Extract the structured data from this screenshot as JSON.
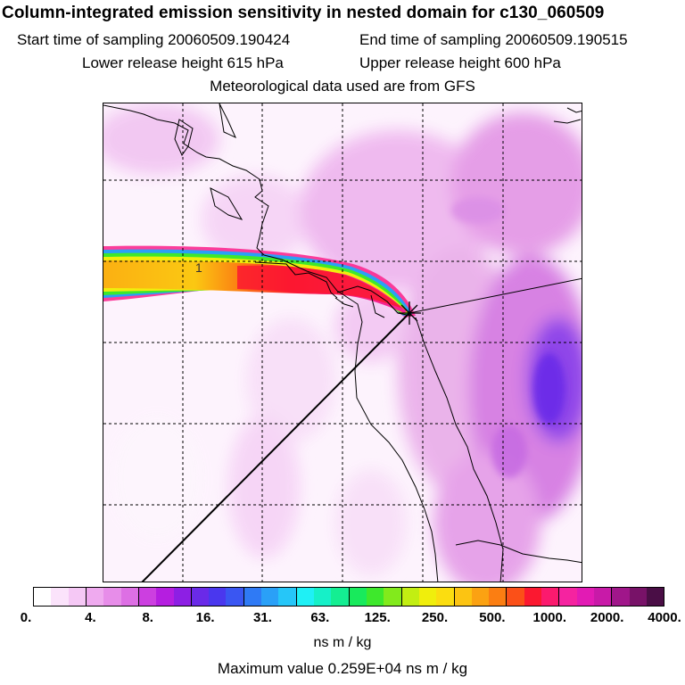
{
  "title": "Column-integrated emission sensitivity in nested domain for c130_060509",
  "sampling": {
    "start": "Start time of sampling 20060509.190424",
    "end": "End time of sampling 20060509.190515"
  },
  "release": {
    "lower": "Lower release height  615 hPa",
    "upper": "Upper release height  600 hPa"
  },
  "met_data": "Meteorological data used are from GFS",
  "map": {
    "release_marker_label": "1",
    "release_symbol": "star-cross-icon"
  },
  "colorbar": {
    "colors": [
      "#ffffff",
      "#fbe3fb",
      "#f5c8f5",
      "#efaaef",
      "#e78de9",
      "#dd6fe4",
      "#cc3fe0",
      "#b51ee0",
      "#8d1fe4",
      "#6a2ae8",
      "#4a37ee",
      "#3a56f2",
      "#2f7af5",
      "#2aa0f7",
      "#26c6f8",
      "#1ff0f5",
      "#16f0c8",
      "#14ee92",
      "#18ea5c",
      "#3ee82c",
      "#82ea1c",
      "#c2ee12",
      "#f0ee0c",
      "#fbdd10",
      "#fcc412",
      "#fba212",
      "#fb7e12",
      "#fb5018",
      "#fb1830",
      "#fb1a6e",
      "#f523a0",
      "#e21bb4",
      "#c81aa8",
      "#a0168a",
      "#781268",
      "#4a0e46"
    ],
    "tick_labels": [
      "0.",
      "4.",
      "8.",
      "16.",
      "31.",
      "63.",
      "125.",
      "250.",
      "500.",
      "1000.",
      "2000.",
      "4000."
    ],
    "units": "ns m / kg"
  },
  "max_value_text": "Maximum value  0.259E+04 ns m / kg"
}
